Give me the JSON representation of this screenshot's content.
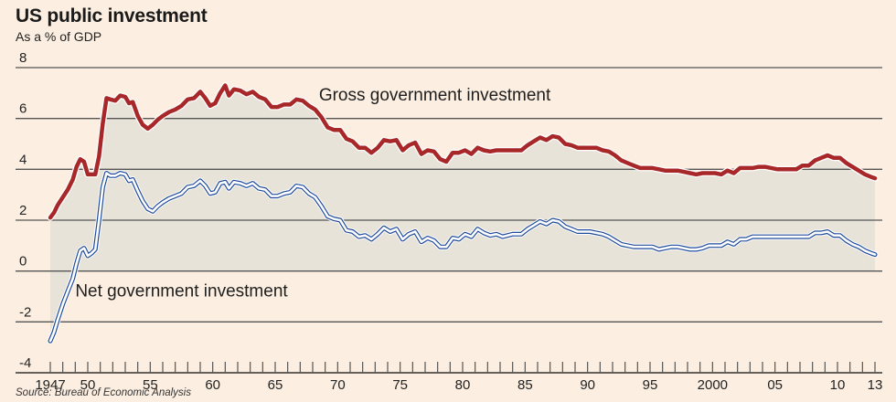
{
  "chart_data": {
    "type": "line",
    "title": "US public investment",
    "subtitle": "As a % of GDP",
    "source": "Source: Bureau of Economic Analysis",
    "xlabel": "",
    "ylabel": "",
    "ylim": [
      -4,
      8
    ],
    "xlim": [
      1947,
      2013
    ],
    "yticks": [
      8,
      6,
      4,
      2,
      0,
      -2,
      -4
    ],
    "ytick_labels": [
      "8",
      "6",
      "4",
      "2",
      "0",
      "-2",
      "-4"
    ],
    "xticks": [
      1947,
      1950,
      1955,
      1960,
      1965,
      1970,
      1975,
      1980,
      1985,
      1990,
      1995,
      2000,
      2005,
      2010,
      2013
    ],
    "xtick_labels": [
      "1947",
      "50",
      "55",
      "60",
      "65",
      "70",
      "75",
      "80",
      "85",
      "90",
      "95",
      "2000",
      "05",
      "10",
      "13"
    ],
    "grid": true,
    "fill_between_series": true,
    "colors": {
      "background": "#fcefe1",
      "fill": "#e8e3d8",
      "gross": "#a8282a",
      "net": "#1f4a9a",
      "grid": "#555555"
    },
    "series": [
      {
        "name": "Gross government investment",
        "label": "Gross government investment",
        "x": [
          1947.0,
          1947.3,
          1947.6,
          1948.0,
          1948.4,
          1948.8,
          1949.1,
          1949.4,
          1949.7,
          1950.0,
          1950.3,
          1950.6,
          1950.9,
          1951.2,
          1951.5,
          1951.8,
          1952.2,
          1952.6,
          1953.0,
          1953.3,
          1953.6,
          1954.0,
          1954.4,
          1954.8,
          1955.2,
          1955.6,
          1956.0,
          1956.5,
          1957.0,
          1957.5,
          1958.0,
          1958.5,
          1959.0,
          1959.4,
          1959.8,
          1960.2,
          1960.6,
          1961.0,
          1961.3,
          1961.7,
          1962.2,
          1962.7,
          1963.2,
          1963.7,
          1964.2,
          1964.7,
          1965.2,
          1965.7,
          1966.2,
          1966.7,
          1967.2,
          1967.7,
          1968.2,
          1968.7,
          1969.2,
          1969.7,
          1970.2,
          1970.7,
          1971.2,
          1971.7,
          1972.2,
          1972.7,
          1973.2,
          1973.7,
          1974.2,
          1974.7,
          1975.2,
          1975.7,
          1976.2,
          1976.7,
          1977.2,
          1977.7,
          1978.2,
          1978.7,
          1979.2,
          1979.7,
          1980.2,
          1980.7,
          1981.2,
          1981.7,
          1982.2,
          1982.7,
          1983.2,
          1984.0,
          1984.7,
          1985.2,
          1985.7,
          1986.2,
          1986.7,
          1987.2,
          1987.7,
          1988.2,
          1988.7,
          1989.2,
          1989.7,
          1990.2,
          1990.7,
          1991.2,
          1991.7,
          1992.2,
          1992.7,
          1993.2,
          1993.7,
          1994.2,
          1994.7,
          1995.2,
          1995.7,
          1996.2,
          1996.7,
          1997.2,
          1997.7,
          1998.2,
          1998.7,
          1999.2,
          1999.7,
          2000.2,
          2000.7,
          2001.2,
          2001.7,
          2002.2,
          2002.7,
          2003.2,
          2003.7,
          2004.2,
          2004.7,
          2005.2,
          2005.7,
          2006.2,
          2006.7,
          2007.2,
          2007.7,
          2008.2,
          2008.7,
          2009.2,
          2009.7,
          2010.2,
          2010.7,
          2011.2,
          2011.7,
          2012.2,
          2012.7,
          2013.0
        ],
        "values": [
          2.1,
          2.3,
          2.6,
          2.9,
          3.2,
          3.6,
          4.1,
          4.4,
          4.3,
          3.8,
          3.8,
          3.8,
          4.5,
          5.8,
          6.8,
          6.75,
          6.7,
          6.9,
          6.85,
          6.6,
          6.65,
          6.1,
          5.75,
          5.6,
          5.75,
          5.95,
          6.1,
          6.25,
          6.35,
          6.5,
          6.75,
          6.8,
          7.05,
          6.8,
          6.5,
          6.6,
          7.0,
          7.3,
          6.9,
          7.15,
          7.1,
          6.95,
          7.05,
          6.85,
          6.75,
          6.45,
          6.45,
          6.55,
          6.55,
          6.75,
          6.7,
          6.5,
          6.35,
          6.05,
          5.65,
          5.55,
          5.55,
          5.2,
          5.1,
          4.85,
          4.85,
          4.65,
          4.85,
          5.15,
          5.1,
          5.15,
          4.75,
          4.95,
          5.05,
          4.6,
          4.75,
          4.7,
          4.4,
          4.3,
          4.65,
          4.65,
          4.75,
          4.6,
          4.85,
          4.75,
          4.7,
          4.75,
          4.75,
          4.75,
          4.75,
          4.95,
          5.1,
          5.25,
          5.15,
          5.3,
          5.25,
          5.0,
          4.95,
          4.85,
          4.85,
          4.85,
          4.85,
          4.75,
          4.7,
          4.55,
          4.35,
          4.25,
          4.15,
          4.05,
          4.05,
          4.05,
          4.0,
          3.95,
          3.95,
          3.95,
          3.9,
          3.85,
          3.8,
          3.85,
          3.85,
          3.85,
          3.8,
          3.95,
          3.85,
          4.05,
          4.05,
          4.05,
          4.1,
          4.1,
          4.05,
          4.0,
          4.0,
          4.0,
          4.0,
          4.15,
          4.15,
          4.35,
          4.45,
          4.55,
          4.45,
          4.45,
          4.25,
          4.1,
          3.95,
          3.8,
          3.7,
          3.65
        ]
      },
      {
        "name": "Net government investment",
        "label": "Net government investment",
        "x": [
          1947.0,
          1947.3,
          1947.6,
          1948.0,
          1948.4,
          1948.8,
          1949.1,
          1949.4,
          1949.7,
          1950.0,
          1950.3,
          1950.6,
          1950.9,
          1951.2,
          1951.5,
          1951.8,
          1952.2,
          1952.6,
          1953.0,
          1953.3,
          1953.6,
          1954.0,
          1954.4,
          1954.8,
          1955.2,
          1955.6,
          1956.0,
          1956.5,
          1957.0,
          1957.5,
          1958.0,
          1958.5,
          1959.0,
          1959.4,
          1959.8,
          1960.2,
          1960.6,
          1961.0,
          1961.3,
          1961.7,
          1962.2,
          1962.7,
          1963.2,
          1963.7,
          1964.2,
          1964.7,
          1965.2,
          1965.7,
          1966.2,
          1966.7,
          1967.2,
          1967.7,
          1968.2,
          1968.7,
          1969.2,
          1969.7,
          1970.2,
          1970.7,
          1971.2,
          1971.7,
          1972.2,
          1972.7,
          1973.2,
          1973.7,
          1974.2,
          1974.7,
          1975.2,
          1975.7,
          1976.2,
          1976.7,
          1977.2,
          1977.7,
          1978.2,
          1978.7,
          1979.2,
          1979.7,
          1980.2,
          1980.7,
          1981.2,
          1981.7,
          1982.2,
          1982.7,
          1983.2,
          1984.0,
          1984.7,
          1985.2,
          1985.7,
          1986.2,
          1986.7,
          1987.2,
          1987.7,
          1988.2,
          1988.7,
          1989.2,
          1989.7,
          1990.2,
          1990.7,
          1991.2,
          1991.7,
          1992.2,
          1992.7,
          1993.2,
          1993.7,
          1994.2,
          1994.7,
          1995.2,
          1995.7,
          1996.2,
          1996.7,
          1997.2,
          1997.7,
          1998.2,
          1998.7,
          1999.2,
          1999.7,
          2000.2,
          2000.7,
          2001.2,
          2001.7,
          2002.2,
          2002.7,
          2003.2,
          2003.7,
          2004.2,
          2004.7,
          2005.2,
          2005.7,
          2006.2,
          2006.7,
          2007.2,
          2007.7,
          2008.2,
          2008.7,
          2009.2,
          2009.7,
          2010.2,
          2010.7,
          2011.2,
          2011.7,
          2012.2,
          2012.7,
          2013.0
        ],
        "values": [
          -2.75,
          -2.4,
          -1.9,
          -1.3,
          -0.8,
          -0.3,
          0.3,
          0.8,
          0.9,
          0.6,
          0.7,
          0.85,
          2.0,
          3.3,
          3.85,
          3.75,
          3.75,
          3.85,
          3.8,
          3.55,
          3.6,
          3.15,
          2.75,
          2.45,
          2.35,
          2.55,
          2.7,
          2.85,
          2.95,
          3.05,
          3.3,
          3.35,
          3.55,
          3.35,
          3.05,
          3.1,
          3.45,
          3.5,
          3.25,
          3.5,
          3.45,
          3.35,
          3.45,
          3.25,
          3.2,
          2.95,
          2.95,
          3.05,
          3.1,
          3.35,
          3.3,
          3.05,
          2.9,
          2.55,
          2.15,
          2.05,
          2.0,
          1.6,
          1.55,
          1.35,
          1.4,
          1.25,
          1.45,
          1.7,
          1.55,
          1.65,
          1.25,
          1.45,
          1.55,
          1.15,
          1.3,
          1.2,
          0.95,
          0.95,
          1.3,
          1.25,
          1.45,
          1.35,
          1.65,
          1.5,
          1.4,
          1.45,
          1.35,
          1.45,
          1.45,
          1.65,
          1.8,
          1.95,
          1.85,
          2.0,
          1.95,
          1.75,
          1.65,
          1.55,
          1.55,
          1.55,
          1.5,
          1.45,
          1.35,
          1.2,
          1.05,
          1.0,
          0.95,
          0.95,
          0.95,
          0.95,
          0.85,
          0.9,
          0.95,
          0.95,
          0.9,
          0.85,
          0.85,
          0.9,
          1.0,
          1.0,
          1.0,
          1.15,
          1.05,
          1.25,
          1.25,
          1.35,
          1.35,
          1.35,
          1.35,
          1.35,
          1.35,
          1.35,
          1.35,
          1.35,
          1.35,
          1.5,
          1.5,
          1.55,
          1.4,
          1.4,
          1.2,
          1.05,
          0.95,
          0.8,
          0.7,
          0.65
        ]
      }
    ],
    "annotations": [
      {
        "text": "Gross government investment",
        "series": "Gross government investment",
        "x": 1968.5,
        "y": 6.7
      },
      {
        "text": "Net government investment",
        "series": "Net government investment",
        "x": 1949.0,
        "y": -1.0
      }
    ]
  }
}
